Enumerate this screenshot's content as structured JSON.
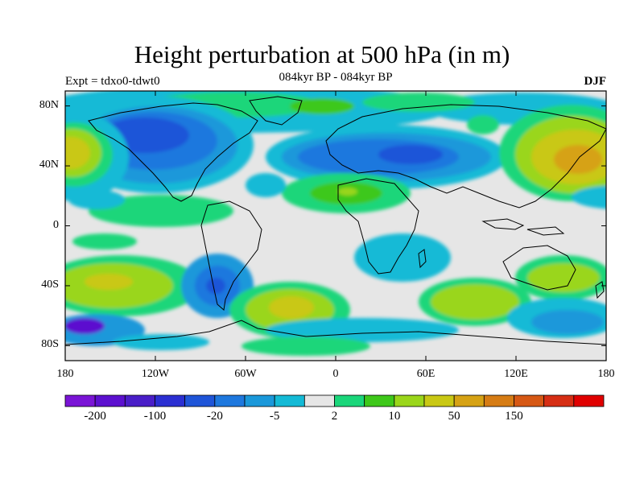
{
  "header": {
    "title": "Height perturbation at 500 hPa (in m)",
    "left_label": "Expt = tdxo0-tdwt0",
    "center_label": "084kyr BP - 084kyr BP",
    "right_label": "DJF"
  },
  "map": {
    "lat_ticks": [
      {
        "label": "80N",
        "lat": 80
      },
      {
        "label": "40N",
        "lat": 40
      },
      {
        "label": "0",
        "lat": 0
      },
      {
        "label": "40S",
        "lat": -40
      },
      {
        "label": "80S",
        "lat": -80
      }
    ],
    "lon_ticks": [
      {
        "label": "180",
        "lon": -180
      },
      {
        "label": "120W",
        "lon": -120
      },
      {
        "label": "60W",
        "lon": -60
      },
      {
        "label": "0",
        "lon": 0
      },
      {
        "label": "60E",
        "lon": 60
      },
      {
        "label": "120E",
        "lon": 120
      },
      {
        "label": "180",
        "lon": 180
      }
    ],
    "lat_range": [
      -90,
      90
    ],
    "lon_range": [
      -180,
      180
    ]
  },
  "colorbar": {
    "colors": [
      "#7a14d6",
      "#5c10cf",
      "#4a1ec8",
      "#2b2fd2",
      "#1f55d8",
      "#1e78de",
      "#1a98da",
      "#14bad6",
      "#e6e6e6",
      "#1ad67a",
      "#3ec81a",
      "#9ad61a",
      "#c9c814",
      "#d6a214",
      "#d67c14",
      "#d65814",
      "#d62e14",
      "#e00000"
    ],
    "labels": [
      {
        "text": "-200",
        "index": 1
      },
      {
        "text": "-100",
        "index": 3
      },
      {
        "text": "-20",
        "index": 5
      },
      {
        "text": "-5",
        "index": 7
      },
      {
        "text": "2",
        "index": 9
      },
      {
        "text": "10",
        "index": 11
      },
      {
        "text": "50",
        "index": 13
      },
      {
        "text": "150",
        "index": 15
      }
    ]
  }
}
